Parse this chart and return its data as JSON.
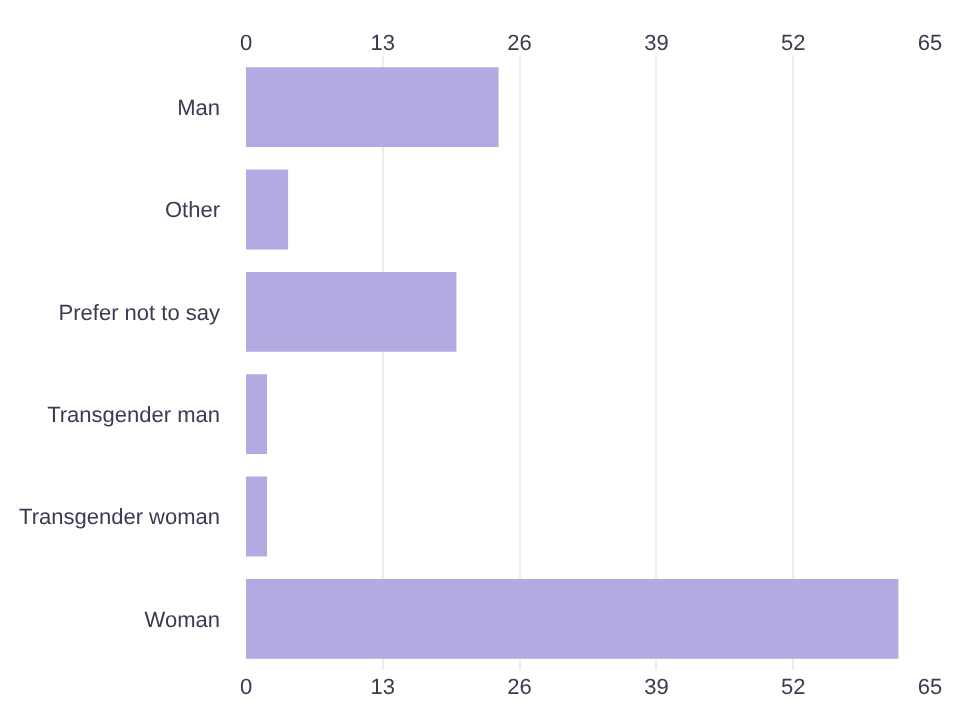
{
  "chart_data": {
    "type": "bar",
    "orientation": "horizontal",
    "categories": [
      "Man",
      "Other",
      "Prefer not to say",
      "Transgender man",
      "Transgender woman",
      "Woman"
    ],
    "values": [
      24,
      4,
      20,
      2,
      2,
      62
    ],
    "color": "#b1abe1",
    "xlim": [
      0,
      65
    ],
    "xticks": [
      0,
      13,
      26,
      39,
      52,
      65
    ],
    "x2lim": [
      0,
      65
    ],
    "x2ticks": [
      0,
      13,
      26,
      39,
      52,
      65
    ],
    "grid": "x"
  }
}
